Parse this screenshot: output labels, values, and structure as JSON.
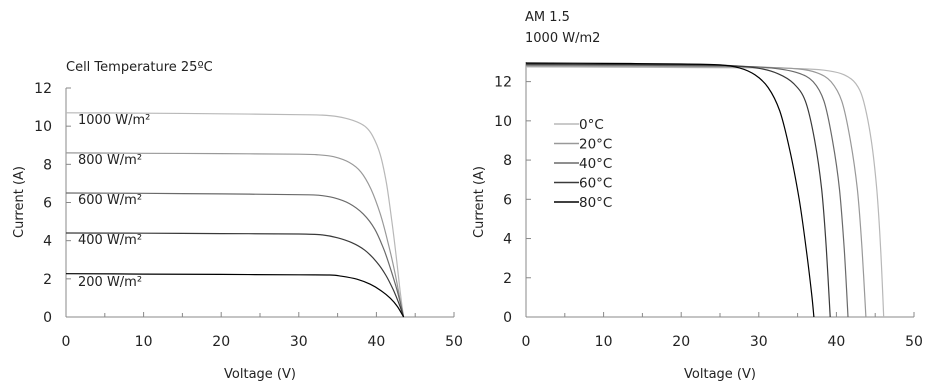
{
  "chart_data": [
    {
      "type": "line",
      "title": "Cell Temperature 25ºC",
      "xlabel": "Voltage (V)",
      "ylabel": "Current (A)",
      "xlim": [
        0,
        50
      ],
      "ylim": [
        0,
        12
      ],
      "xticks": [
        0,
        10,
        20,
        30,
        40,
        50
      ],
      "yticks": [
        0,
        2,
        4,
        6,
        8,
        10,
        12
      ],
      "grid": false,
      "series": [
        {
          "name": "1000 W/m²",
          "color": "#b8b8b8",
          "points": [
            [
              0,
              10.7
            ],
            [
              10,
              10.68
            ],
            [
              20,
              10.65
            ],
            [
              30,
              10.6
            ],
            [
              33,
              10.58
            ],
            [
              35,
              10.5
            ],
            [
              37,
              10.3
            ],
            [
              38.5,
              10.0
            ],
            [
              39.5,
              9.5
            ],
            [
              40.5,
              8.5
            ],
            [
              41.3,
              7.0
            ],
            [
              42,
              5.0
            ],
            [
              42.6,
              3.0
            ],
            [
              43.1,
              1.2
            ],
            [
              43.5,
              0
            ]
          ]
        },
        {
          "name": "800 W/m²",
          "color": "#999999",
          "points": [
            [
              0,
              8.6
            ],
            [
              10,
              8.58
            ],
            [
              20,
              8.56
            ],
            [
              30,
              8.53
            ],
            [
              32.5,
              8.5
            ],
            [
              34.5,
              8.4
            ],
            [
              36.5,
              8.1
            ],
            [
              38,
              7.6
            ],
            [
              39.3,
              6.7
            ],
            [
              40.5,
              5.4
            ],
            [
              41.5,
              3.9
            ],
            [
              42.4,
              2.3
            ],
            [
              43,
              1.0
            ],
            [
              43.5,
              0
            ]
          ]
        },
        {
          "name": "600 W/m²",
          "color": "#6a6a6a",
          "points": [
            [
              0,
              6.5
            ],
            [
              10,
              6.48
            ],
            [
              20,
              6.45
            ],
            [
              30,
              6.41
            ],
            [
              32.5,
              6.38
            ],
            [
              34.5,
              6.25
            ],
            [
              36.5,
              5.95
            ],
            [
              38.3,
              5.4
            ],
            [
              39.8,
              4.6
            ],
            [
              41,
              3.5
            ],
            [
              42,
              2.3
            ],
            [
              42.8,
              1.2
            ],
            [
              43.5,
              0
            ]
          ]
        },
        {
          "name": "400 W/m²",
          "color": "#3a3a3a",
          "points": [
            [
              0,
              4.4
            ],
            [
              10,
              4.39
            ],
            [
              20,
              4.37
            ],
            [
              30,
              4.35
            ],
            [
              33,
              4.3
            ],
            [
              35,
              4.15
            ],
            [
              36.8,
              3.9
            ],
            [
              38.5,
              3.5
            ],
            [
              40,
              2.9
            ],
            [
              41.2,
              2.2
            ],
            [
              42.2,
              1.4
            ],
            [
              43,
              0.6
            ],
            [
              43.5,
              0
            ]
          ]
        },
        {
          "name": "200 W/m²",
          "color": "#000000",
          "points": [
            [
              0,
              2.27
            ],
            [
              10,
              2.25
            ],
            [
              20,
              2.23
            ],
            [
              30,
              2.21
            ],
            [
              34,
              2.2
            ],
            [
              35.5,
              2.14
            ],
            [
              37.5,
              1.98
            ],
            [
              39.2,
              1.72
            ],
            [
              40.6,
              1.38
            ],
            [
              41.8,
              0.98
            ],
            [
              42.7,
              0.55
            ],
            [
              43.5,
              0
            ]
          ]
        }
      ]
    },
    {
      "type": "line",
      "title": "AM 1.5",
      "subtitle": "1000 W/m2",
      "xlabel": "Voltage (V)",
      "ylabel": "Current (A)",
      "xlim": [
        0,
        50
      ],
      "ylim": [
        0,
        13
      ],
      "xticks": [
        0,
        10,
        20,
        30,
        40,
        50
      ],
      "yticks": [
        0,
        2,
        4,
        6,
        8,
        10,
        12
      ],
      "grid": false,
      "legend_position": "left",
      "series": [
        {
          "name": "0°C",
          "color": "#b8b8b8",
          "points": [
            [
              0,
              12.75
            ],
            [
              10,
              12.74
            ],
            [
              20,
              12.72
            ],
            [
              30,
              12.7
            ],
            [
              36,
              12.65
            ],
            [
              39,
              12.55
            ],
            [
              41,
              12.35
            ],
            [
              42.5,
              11.9
            ],
            [
              43.5,
              11.0
            ],
            [
              44.5,
              9.0
            ],
            [
              45.2,
              6.5
            ],
            [
              45.7,
              3.5
            ],
            [
              46.1,
              0
            ]
          ]
        },
        {
          "name": "20°C",
          "color": "#999999",
          "points": [
            [
              0,
              12.8
            ],
            [
              10,
              12.79
            ],
            [
              20,
              12.77
            ],
            [
              30,
              12.74
            ],
            [
              35,
              12.65
            ],
            [
              37.5,
              12.45
            ],
            [
              39.3,
              12.0
            ],
            [
              40.7,
              11.0
            ],
            [
              41.8,
              9.0
            ],
            [
              42.7,
              6.5
            ],
            [
              43.3,
              3.5
            ],
            [
              43.8,
              0
            ]
          ]
        },
        {
          "name": "40°C",
          "color": "#6a6a6a",
          "points": [
            [
              0,
              12.85
            ],
            [
              10,
              12.84
            ],
            [
              20,
              12.82
            ],
            [
              28,
              12.78
            ],
            [
              32,
              12.68
            ],
            [
              35,
              12.45
            ],
            [
              37,
              12.0
            ],
            [
              38.4,
              11.0
            ],
            [
              39.5,
              9.0
            ],
            [
              40.4,
              6.5
            ],
            [
              41,
              3.5
            ],
            [
              41.5,
              0
            ]
          ]
        },
        {
          "name": "60°C",
          "color": "#3a3a3a",
          "points": [
            [
              0,
              12.9
            ],
            [
              10,
              12.88
            ],
            [
              20,
              12.86
            ],
            [
              26,
              12.82
            ],
            [
              30,
              12.68
            ],
            [
              32.5,
              12.4
            ],
            [
              34.5,
              11.9
            ],
            [
              36,
              11.0
            ],
            [
              37.2,
              9.0
            ],
            [
              38.1,
              6.5
            ],
            [
              38.7,
              3.5
            ],
            [
              39.2,
              0
            ]
          ]
        },
        {
          "name": "80°C",
          "color": "#000000",
          "points": [
            [
              0,
              12.95
            ],
            [
              10,
              12.93
            ],
            [
              20,
              12.9
            ],
            [
              25,
              12.85
            ],
            [
              27.5,
              12.7
            ],
            [
              29.5,
              12.35
            ],
            [
              31.2,
              11.7
            ],
            [
              32.7,
              10.5
            ],
            [
              34,
              8.5
            ],
            [
              35.2,
              6.0
            ],
            [
              36.1,
              3.5
            ],
            [
              36.8,
              1.2
            ],
            [
              37.1,
              0
            ]
          ]
        }
      ]
    }
  ]
}
